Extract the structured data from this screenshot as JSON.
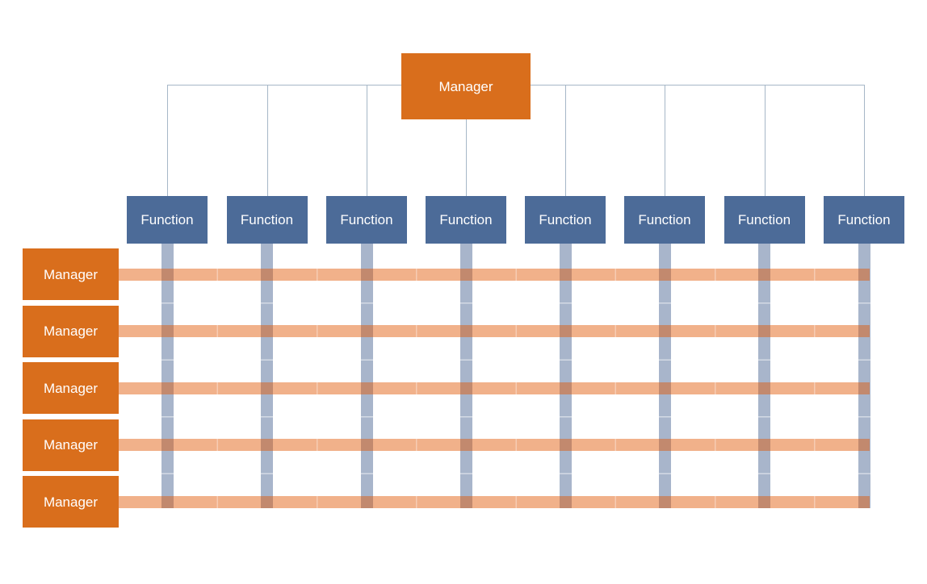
{
  "diagram": {
    "top_manager": {
      "label": "Manager"
    },
    "functions": [
      {
        "label": "Function"
      },
      {
        "label": "Function"
      },
      {
        "label": "Function"
      },
      {
        "label": "Function"
      },
      {
        "label": "Function"
      },
      {
        "label": "Function"
      },
      {
        "label": "Function"
      },
      {
        "label": "Function"
      }
    ],
    "managers": [
      {
        "label": "Manager"
      },
      {
        "label": "Manager"
      },
      {
        "label": "Manager"
      },
      {
        "label": "Manager"
      },
      {
        "label": "Manager"
      }
    ],
    "colors": {
      "background": "#FFFFFF",
      "manager_box": "#D96E1C",
      "function_box": "#4C6B98",
      "connector_line": "#A6B7C7",
      "function_column_bar": "#A8B5CB",
      "manager_row_bar": "#F1B189",
      "manager_row_bar_overlay": "rgba(225,85,0,0.46)",
      "bar_intersection": "#C38C74",
      "box_text": "#FFFFFF"
    }
  }
}
